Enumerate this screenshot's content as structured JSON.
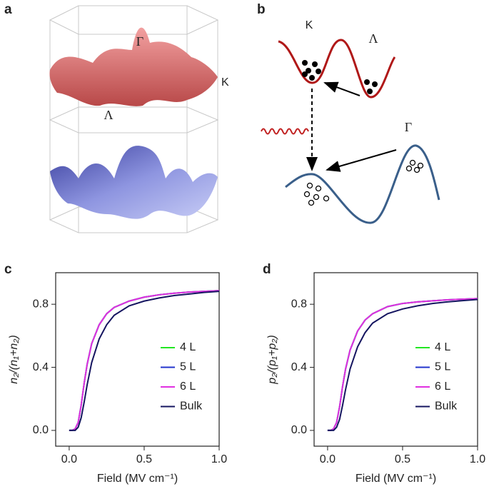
{
  "panel_a": {
    "label": "a",
    "gamma": "Γ",
    "k": "K",
    "lambda": "Λ"
  },
  "panel_b": {
    "label": "b",
    "k": "K",
    "lambda": "Λ",
    "gamma": "Γ"
  },
  "chart_data": [
    {
      "type": "line",
      "panel": "c",
      "x_label": "Field (MV cm⁻¹)",
      "y_label": "n₂/(n₁+n₂)",
      "x": [
        0,
        0.02,
        0.04,
        0.06,
        0.08,
        0.1,
        0.12,
        0.15,
        0.2,
        0.25,
        0.3,
        0.4,
        0.5,
        0.6,
        0.7,
        0.8,
        0.9,
        1.0
      ],
      "xlim": [
        -0.09,
        1.0
      ],
      "ylim": [
        -0.1,
        1.0
      ],
      "xticks": [
        {
          "value": 0,
          "label": "0.0"
        },
        0.5,
        {
          "value": 1,
          "label": "1.0"
        }
      ],
      "yticks": [
        {
          "value": 0,
          "label": "0.0"
        },
        0.4,
        0.8
      ],
      "series": [
        {
          "name": "4 L",
          "color": "#22e622",
          "values": [
            0,
            0,
            0.01,
            0.05,
            0.16,
            0.3,
            0.42,
            0.55,
            0.67,
            0.74,
            0.78,
            0.82,
            0.845,
            0.86,
            0.87,
            0.877,
            0.882,
            0.886
          ]
        },
        {
          "name": "5 L",
          "color": "#2233cc",
          "values": [
            0,
            0,
            0.01,
            0.05,
            0.16,
            0.3,
            0.42,
            0.55,
            0.67,
            0.74,
            0.78,
            0.82,
            0.845,
            0.86,
            0.87,
            0.877,
            0.882,
            0.886
          ]
        },
        {
          "name": "6 L",
          "color": "#e030e0",
          "values": [
            0,
            0,
            0.01,
            0.05,
            0.16,
            0.3,
            0.42,
            0.55,
            0.67,
            0.74,
            0.78,
            0.82,
            0.845,
            0.86,
            0.87,
            0.877,
            0.882,
            0.886
          ]
        },
        {
          "name": "Bulk",
          "color": "#151560",
          "values": [
            0,
            0,
            0,
            0.02,
            0.08,
            0.18,
            0.29,
            0.43,
            0.58,
            0.67,
            0.73,
            0.79,
            0.82,
            0.84,
            0.855,
            0.865,
            0.875,
            0.882
          ]
        }
      ]
    },
    {
      "type": "line",
      "panel": "d",
      "x_label": "Field (MV cm⁻¹)",
      "y_label": "p₂/(p₁+p₂)",
      "x": [
        0,
        0.02,
        0.04,
        0.06,
        0.08,
        0.1,
        0.12,
        0.15,
        0.2,
        0.25,
        0.3,
        0.4,
        0.5,
        0.6,
        0.7,
        0.8,
        0.9,
        1.0
      ],
      "xlim": [
        -0.09,
        1.0
      ],
      "ylim": [
        -0.1,
        1.0
      ],
      "xticks": [
        {
          "value": 0,
          "label": "0.0"
        },
        0.5,
        {
          "value": 1,
          "label": "1.0"
        }
      ],
      "yticks": [
        {
          "value": 0,
          "label": "0.0"
        },
        0.4,
        0.8
      ],
      "series": [
        {
          "name": "4 L",
          "color": "#22e622",
          "values": [
            0,
            0,
            0.01,
            0.05,
            0.15,
            0.28,
            0.39,
            0.51,
            0.63,
            0.7,
            0.74,
            0.785,
            0.805,
            0.815,
            0.822,
            0.828,
            0.832,
            0.836
          ]
        },
        {
          "name": "5 L",
          "color": "#2233cc",
          "values": [
            0,
            0,
            0.01,
            0.05,
            0.15,
            0.28,
            0.39,
            0.51,
            0.63,
            0.7,
            0.74,
            0.785,
            0.805,
            0.815,
            0.822,
            0.828,
            0.832,
            0.836
          ]
        },
        {
          "name": "6 L",
          "color": "#e030e0",
          "values": [
            0,
            0,
            0.01,
            0.05,
            0.15,
            0.28,
            0.39,
            0.51,
            0.63,
            0.7,
            0.74,
            0.785,
            0.805,
            0.815,
            0.822,
            0.828,
            0.832,
            0.836
          ]
        },
        {
          "name": "Bulk",
          "color": "#151560",
          "values": [
            0,
            0,
            0,
            0.02,
            0.07,
            0.16,
            0.26,
            0.39,
            0.53,
            0.62,
            0.68,
            0.74,
            0.77,
            0.79,
            0.805,
            0.815,
            0.823,
            0.83
          ]
        }
      ]
    }
  ]
}
